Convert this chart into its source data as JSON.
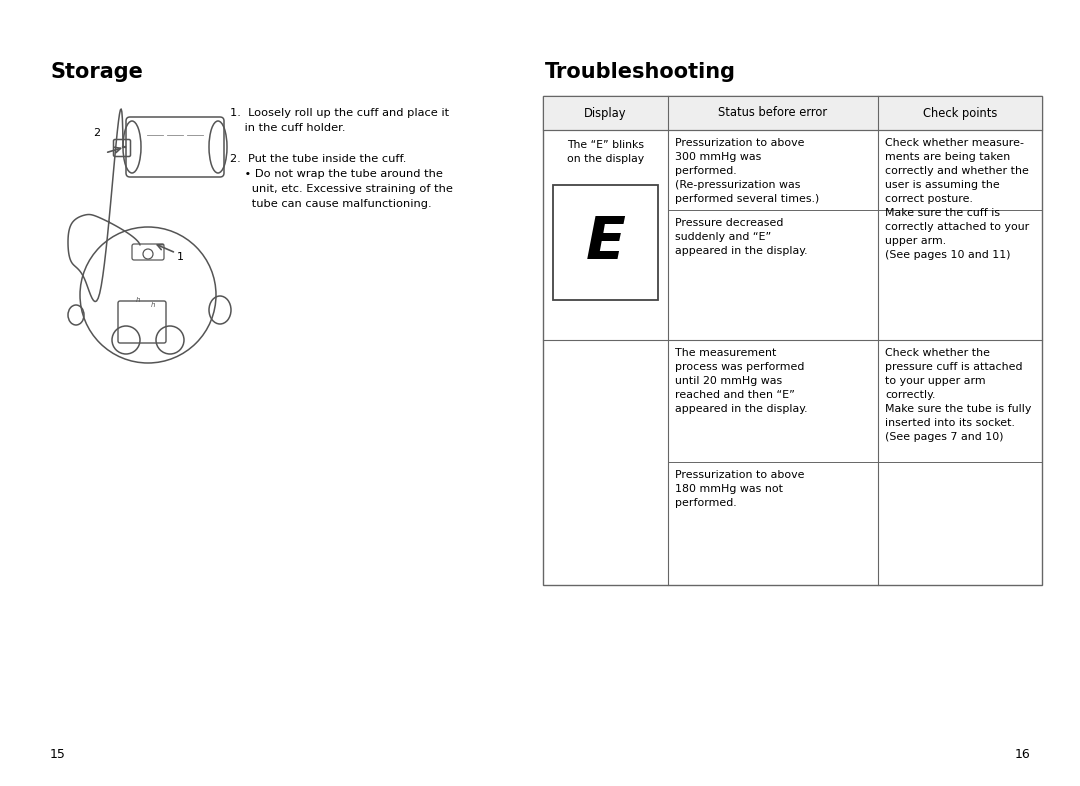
{
  "bg_color": "#ffffff",
  "page_width": 10.8,
  "page_height": 7.86,
  "storage_title": "Storage",
  "troubleshooting_title": "Troubleshooting",
  "table_headers": [
    "Display",
    "Status before error",
    "Check points"
  ],
  "display_col_text": "The “E” blinks\non the display",
  "table_e_display": "E",
  "status_texts": [
    "Pressurization to above\n300 mmHg was\nperformed.\n(Re-pressurization was\nperformed several times.)",
    "Pressure decreased\nsuddenly and “E”\nappeared in the display.",
    "The measurement\nprocess was performed\nuntil 20 mmHg was\nreached and then “E”\nappeared in the display.",
    "Pressurization to above\n180 mmHg was not\nperformed."
  ],
  "check_texts": [
    "Check whether measure-\nments are being taken\ncorrectly and whether the\nuser is assuming the\ncorrect posture.\nMake sure the cuff is\ncorrectly attached to your\nupper arm.\n(See pages 10 and 11)",
    "Check whether the\npressure cuff is attached\nto your upper arm\ncorrectly.\nMake sure the tube is fully\ninserted into its socket.\n(See pages 7 and 10)"
  ],
  "instr_text": "1.  Loosely roll up the cuff and place it\n    in the cuff holder.\n\n2.  Put the tube inside the cuff.\n    • Do not wrap the tube around the\n      unit, etc. Excessive straining of the\n      tube can cause malfunctioning.",
  "page_numbers": [
    "15",
    "16"
  ],
  "text_color": "#000000",
  "border_color": "#666666",
  "draw_color": "#555555"
}
